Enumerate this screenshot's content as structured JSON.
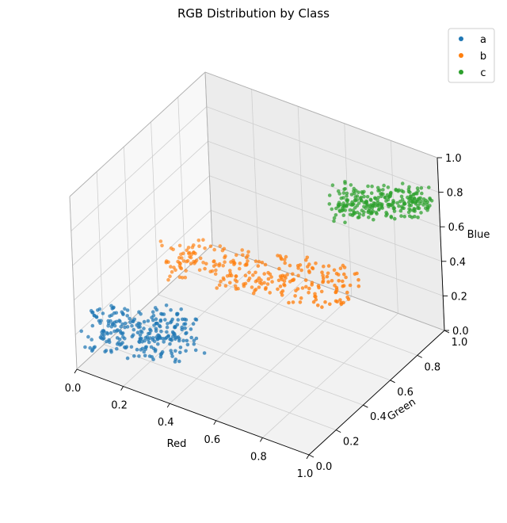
{
  "chart_data": {
    "type": "scatter",
    "projection": "3d",
    "title": "RGB Distribution by Class",
    "xlabel": "Red",
    "ylabel": "Green",
    "zlabel": "Blue",
    "xlim": [
      0,
      1
    ],
    "ylim": [
      0,
      1
    ],
    "zlim": [
      0,
      1
    ],
    "ticks": [
      "0.0",
      "0.2",
      "0.4",
      "0.6",
      "0.8",
      "1.0"
    ],
    "grid": true,
    "legend_position": "top-right",
    "series": [
      {
        "name": "a",
        "color": "#1f77b4",
        "cluster": {
          "red": [
            0.02,
            0.35
          ],
          "green": [
            0.05,
            0.3
          ],
          "blue": [
            0.05,
            0.3
          ]
        }
      },
      {
        "name": "b",
        "color": "#ff7f0e",
        "cluster": {
          "red": [
            0.15,
            0.85
          ],
          "green": [
            0.35,
            0.65
          ],
          "blue": [
            0.35,
            0.55
          ]
        }
      },
      {
        "name": "c",
        "color": "#2ca02c",
        "cluster": {
          "red": [
            0.7,
            0.98
          ],
          "green": [
            0.7,
            0.98
          ],
          "blue": [
            0.7,
            0.85
          ]
        }
      }
    ]
  }
}
